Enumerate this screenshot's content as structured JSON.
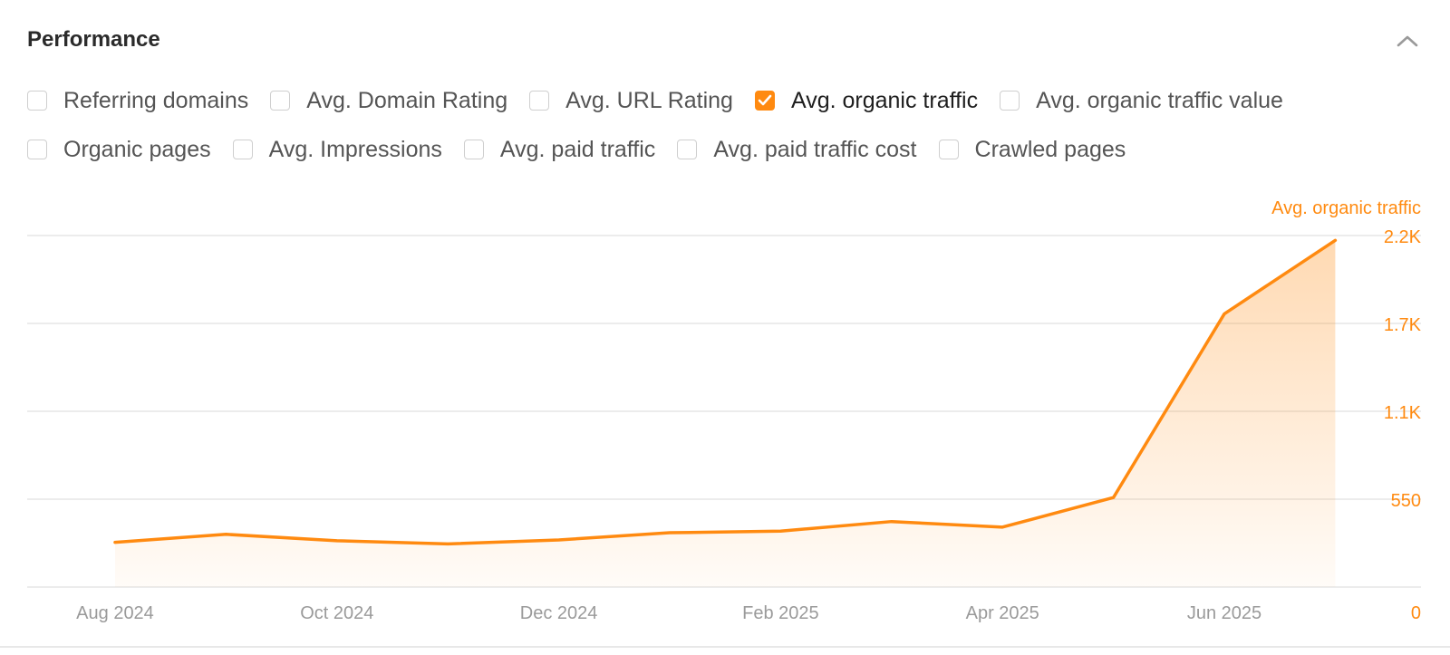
{
  "panel": {
    "title": "Performance"
  },
  "colors": {
    "accent": "#ff8a10",
    "grid": "#e6e6e6",
    "muted_text": "#9a9a9a"
  },
  "metrics": [
    [
      {
        "label": "Referring domains",
        "checked": false
      },
      {
        "label": "Avg. Domain Rating",
        "checked": false
      },
      {
        "label": "Avg. URL Rating",
        "checked": false
      },
      {
        "label": "Avg. organic traffic",
        "checked": true
      },
      {
        "label": "Avg. organic traffic value",
        "checked": false
      }
    ],
    [
      {
        "label": "Organic pages",
        "checked": false
      },
      {
        "label": "Avg. Impressions",
        "checked": false
      },
      {
        "label": "Avg. paid traffic",
        "checked": false
      },
      {
        "label": "Avg. paid traffic cost",
        "checked": false
      },
      {
        "label": "Crawled pages",
        "checked": false
      }
    ]
  ],
  "chart_data": {
    "type": "area",
    "x": [
      "2024-08",
      "2024-09",
      "2024-10",
      "2024-11",
      "2024-12",
      "2025-01",
      "2025-02",
      "2025-03",
      "2025-04",
      "2025-05",
      "2025-06",
      "2025-07"
    ],
    "series": [
      {
        "name": "Avg. organic traffic",
        "values": [
          280,
          330,
          290,
          270,
          295,
          340,
          350,
          410,
          375,
          560,
          1710,
          2170
        ]
      }
    ],
    "x_ticks": [
      "Aug 2024",
      "Oct 2024",
      "Dec 2024",
      "Feb 2025",
      "Apr 2025",
      "Jun 2025"
    ],
    "y_ticks": [
      {
        "value": 0,
        "label": "0"
      },
      {
        "value": 550,
        "label": "550"
      },
      {
        "value": 1100,
        "label": "1.1K"
      },
      {
        "value": 1650,
        "label": "1.7K"
      },
      {
        "value": 2200,
        "label": "2.2K"
      }
    ],
    "ylim": [
      0,
      2200
    ],
    "y_axis_title": "Avg. organic traffic",
    "grid": true,
    "legend": "none"
  }
}
